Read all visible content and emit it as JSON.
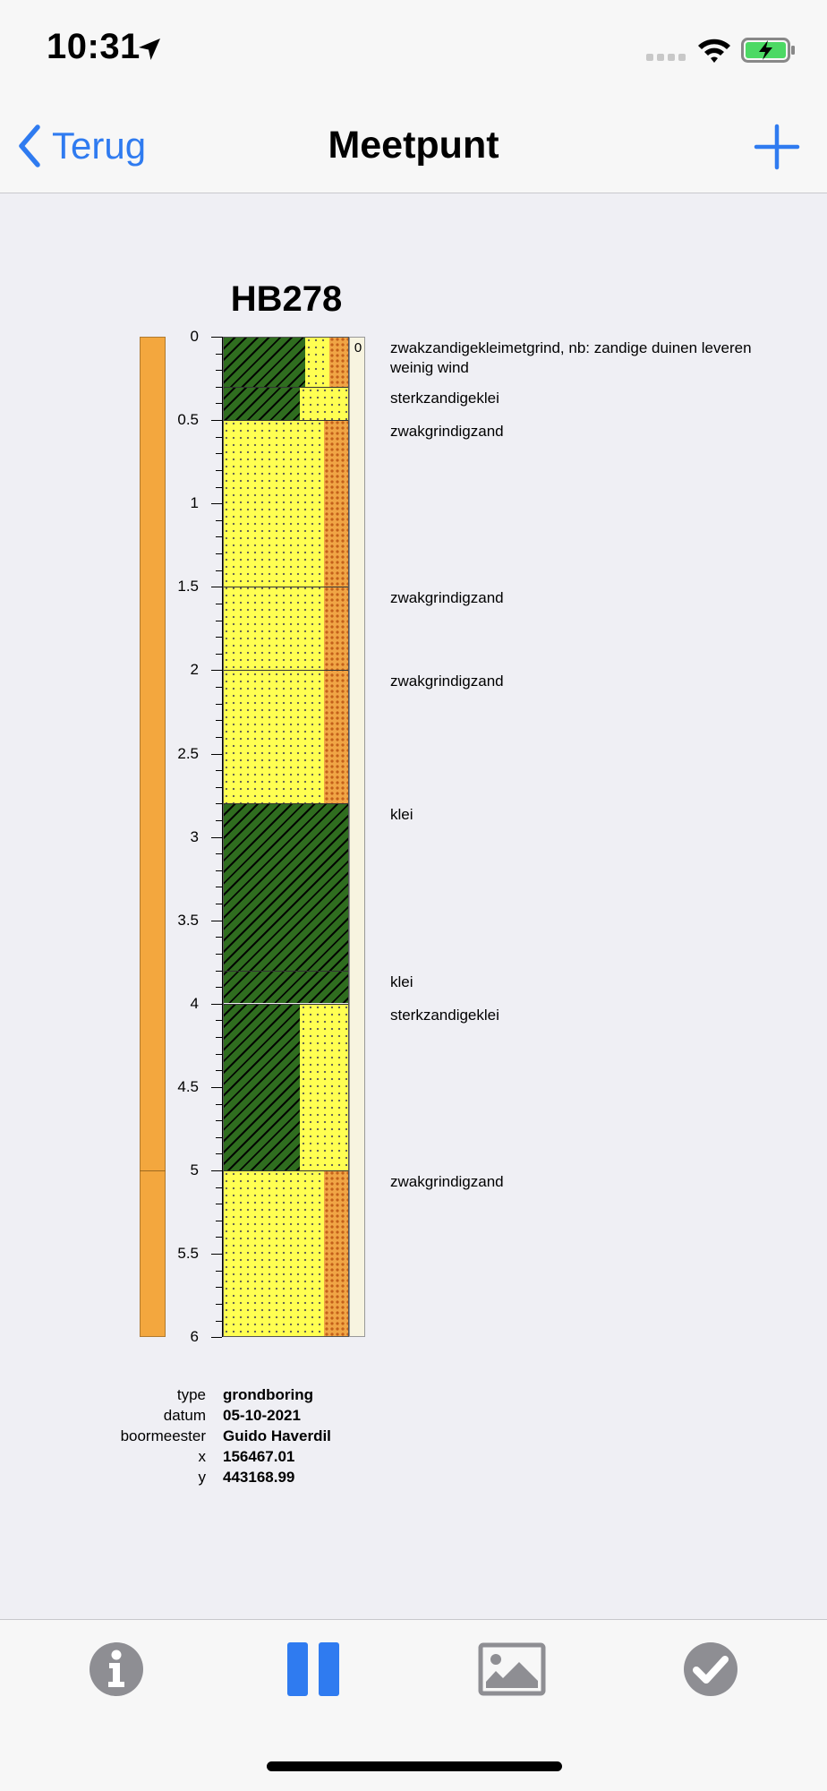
{
  "status": {
    "time": "10:31"
  },
  "nav": {
    "back_label": "Terug",
    "title": "Meetpunt"
  },
  "profile": {
    "title": "HB278",
    "side_value": "0",
    "depth_ticks": [
      "0",
      "0.5",
      "1",
      "1.5",
      "2",
      "2.5",
      "3",
      "3.5",
      "4",
      "4.5",
      "5",
      "5.5",
      "6"
    ],
    "layers": [
      {
        "top": 0.0,
        "bottom": 0.3,
        "description": "zwakzandigekleimetgrind, nb: zandige duinen leveren weinig wind"
      },
      {
        "top": 0.3,
        "bottom": 0.5,
        "description": "sterkzandigeklei"
      },
      {
        "top": 0.5,
        "bottom": 1.5,
        "description": "zwakgrindigzand"
      },
      {
        "top": 1.5,
        "bottom": 2.0,
        "description": "zwakgrindigzand"
      },
      {
        "top": 2.0,
        "bottom": 2.8,
        "description": "zwakgrindigzand"
      },
      {
        "top": 2.8,
        "bottom": 3.8,
        "description": "klei"
      },
      {
        "top": 3.8,
        "bottom": 4.0,
        "description": "klei"
      },
      {
        "top": 4.0,
        "bottom": 5.0,
        "description": "sterkzandigeklei"
      },
      {
        "top": 5.0,
        "bottom": 6.0,
        "description": "zwakgrindigzand"
      }
    ]
  },
  "meta": {
    "type_label": "type",
    "type_value": "grondboring",
    "datum_label": "datum",
    "datum_value": "05-10-2021",
    "boormeester_label": "boormeester",
    "boormeester_value": "Guido Haverdil",
    "x_label": "x",
    "x_value": "156467.01",
    "y_label": "y",
    "y_value": "443168.99"
  },
  "colors": {
    "accent": "#2f7bf0",
    "clay": "#2f6d1f",
    "sand": "#ffff52",
    "gravel": "#f0a545",
    "depth_bar": "#f3a73e"
  },
  "tabbar": {
    "icons": [
      "info-icon",
      "pause-icon",
      "image-icon",
      "checkmark-icon"
    ]
  }
}
